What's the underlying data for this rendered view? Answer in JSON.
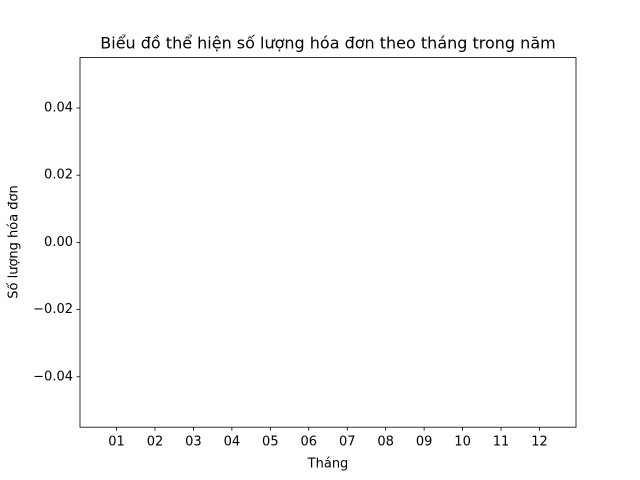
{
  "chart_data": {
    "type": "bar",
    "title": "Biểu đồ thể hiện số lượng hóa đơn theo tháng trong năm",
    "x_label": "Tháng",
    "y_label": "Số lượng hóa đơn",
    "categories": [
      "01",
      "02",
      "03",
      "04",
      "05",
      "06",
      "07",
      "08",
      "09",
      "10",
      "11",
      "12"
    ],
    "values": [
      0,
      0,
      0,
      0,
      0,
      0,
      0,
      0,
      0,
      0,
      0,
      0
    ],
    "color": "#1f77b4",
    "ylim": [
      -0.055,
      0.055
    ],
    "yticks": [
      {
        "value": -0.04,
        "label": "−0.04"
      },
      {
        "value": -0.02,
        "label": "−0.02"
      },
      {
        "value": 0,
        "label": "0.00"
      },
      0.02,
      0.04
    ],
    "grid": false
  }
}
